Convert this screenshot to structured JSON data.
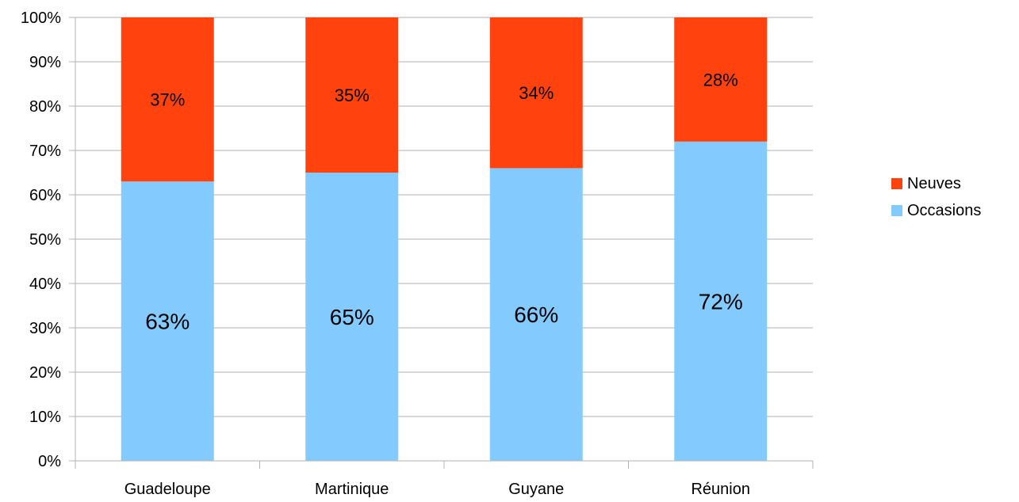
{
  "chart_data": {
    "type": "bar",
    "stacked": true,
    "percent_stacked": true,
    "categories": [
      "Guadeloupe",
      "Martinique",
      "Guyane",
      "Réunion"
    ],
    "series": [
      {
        "name": "Occasions",
        "values": [
          63,
          65,
          66,
          72
        ],
        "labels": [
          "63%",
          "65%",
          "66%",
          "72%"
        ],
        "color": "#83CAFF"
      },
      {
        "name": "Neuves",
        "values": [
          37,
          35,
          34,
          28
        ],
        "labels": [
          "37%",
          "35%",
          "34%",
          "28%"
        ],
        "color": "#FF420E"
      }
    ],
    "y_ticks": [
      "0%",
      "10%",
      "20%",
      "30%",
      "40%",
      "50%",
      "60%",
      "70%",
      "80%",
      "90%",
      "100%"
    ],
    "ylim": [
      0,
      100
    ],
    "grid": true,
    "legend_position": "right",
    "legend_order": [
      "Neuves",
      "Occasions"
    ],
    "title": "",
    "xlabel": "",
    "ylabel": ""
  }
}
